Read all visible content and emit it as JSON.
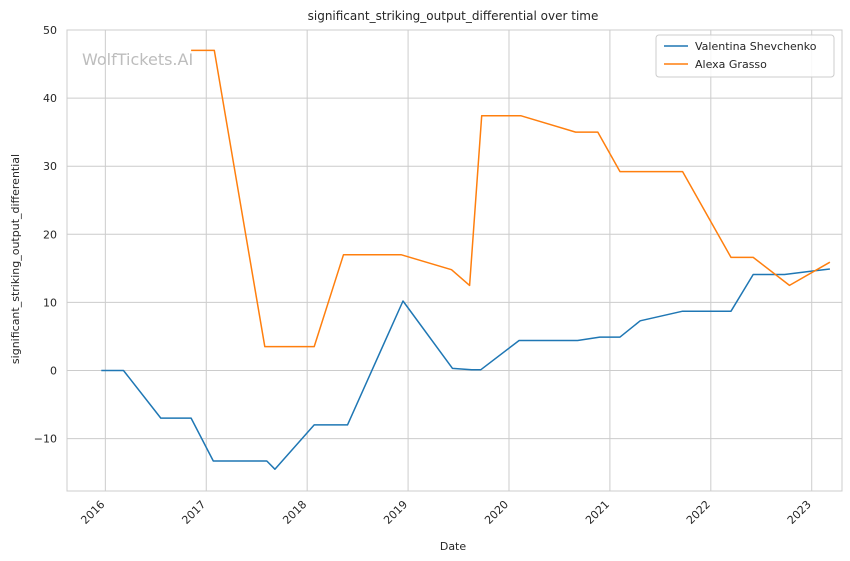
{
  "chart_data": {
    "type": "line",
    "title": "significant_striking_output_differential over time",
    "xlabel": "Date",
    "ylabel": "significant_striking_output_differential",
    "watermark": "WolfTickets.AI",
    "xlim": [
      2015.62,
      2023.3
    ],
    "ylim": [
      -17.7,
      50
    ],
    "x_ticks": [
      2016,
      2017,
      2018,
      2019,
      2020,
      2021,
      2022,
      2023
    ],
    "x_tick_labels": [
      "2016",
      "2017",
      "2018",
      "2019",
      "2020",
      "2021",
      "2022",
      "2023"
    ],
    "y_ticks": [
      -10,
      0,
      10,
      20,
      30,
      40,
      50
    ],
    "y_tick_labels": [
      "−10",
      "0",
      "10",
      "20",
      "30",
      "40",
      "50"
    ],
    "grid": true,
    "legend_position": "top-right",
    "series": [
      {
        "name": "Valentina Shevchenko",
        "color": "#1f77b4",
        "points": [
          [
            2015.96,
            0
          ],
          [
            2016.18,
            0
          ],
          [
            2016.55,
            -7
          ],
          [
            2016.85,
            -7
          ],
          [
            2017.07,
            -13.3
          ],
          [
            2017.6,
            -13.3
          ],
          [
            2017.68,
            -14.5
          ],
          [
            2018.07,
            -8
          ],
          [
            2018.4,
            -8
          ],
          [
            2018.95,
            10.2
          ],
          [
            2019.44,
            0.3
          ],
          [
            2019.63,
            0.1
          ],
          [
            2019.72,
            0.1
          ],
          [
            2020.1,
            4.4
          ],
          [
            2020.68,
            4.4
          ],
          [
            2020.9,
            4.9
          ],
          [
            2021.1,
            4.9
          ],
          [
            2021.3,
            7.3
          ],
          [
            2021.72,
            8.7
          ],
          [
            2022.2,
            8.7
          ],
          [
            2022.42,
            14.1
          ],
          [
            2022.73,
            14.1
          ],
          [
            2023.0,
            14.6
          ],
          [
            2023.18,
            14.9
          ]
        ]
      },
      {
        "name": "Alexa Grasso",
        "color": "#ff7f0e",
        "points": [
          [
            2016.85,
            47
          ],
          [
            2017.08,
            47
          ],
          [
            2017.58,
            3.5
          ],
          [
            2018.07,
            3.5
          ],
          [
            2018.36,
            17
          ],
          [
            2018.93,
            17
          ],
          [
            2019.43,
            14.8
          ],
          [
            2019.61,
            12.5
          ],
          [
            2019.73,
            37.4
          ],
          [
            2020.12,
            37.4
          ],
          [
            2020.66,
            35
          ],
          [
            2020.88,
            35
          ],
          [
            2021.1,
            29.2
          ],
          [
            2021.72,
            29.2
          ],
          [
            2022.2,
            16.6
          ],
          [
            2022.42,
            16.6
          ],
          [
            2022.78,
            12.5
          ],
          [
            2023.18,
            15.9
          ]
        ]
      }
    ]
  }
}
